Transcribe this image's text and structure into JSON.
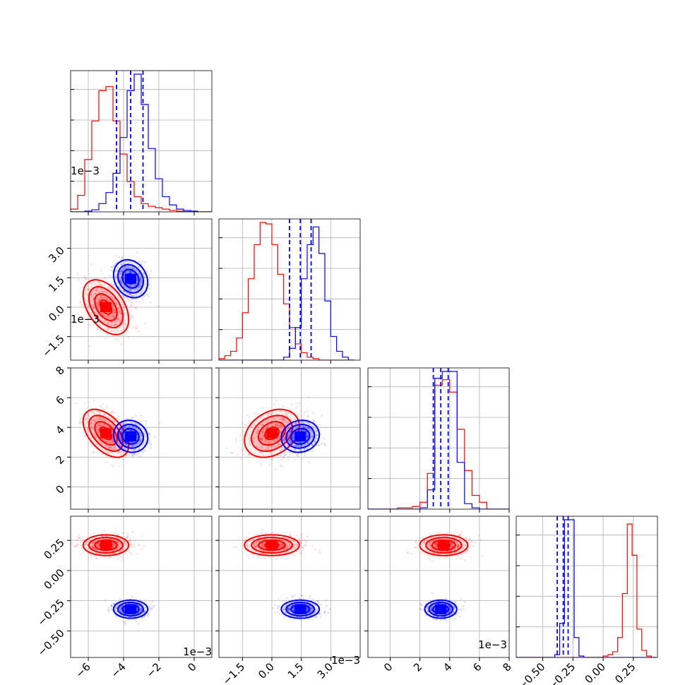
{
  "chart_data": {
    "type": "corner",
    "series": [
      {
        "name": "",
        "color": "#ff0000",
        "mean": [
          -5.0,
          0.0,
          3.6,
          0.21
        ],
        "sd": [
          0.6,
          0.65,
          0.75,
          0.04
        ],
        "rho": {
          "0-1": -0.45,
          "0-2": -0.5,
          "1-2": 0.3
        }
      },
      {
        "name": "",
        "color": "#0000ff",
        "mean": [
          -3.6,
          1.45,
          3.4,
          -0.32
        ],
        "sd": [
          0.45,
          0.45,
          0.5,
          0.035
        ],
        "rho": {
          "0-1": -0.2,
          "0-2": -0.1,
          "1-2": 0.1
        }
      }
    ],
    "quantile_lines": [
      {
        "color": "#0000ff",
        "values": [
          -4.4,
          -3.6,
          -2.9
        ]
      },
      {
        "color": "#0000ff",
        "values": [
          0.9,
          1.45,
          2.0
        ]
      },
      {
        "color": "#0000ff",
        "values": [
          2.9,
          3.4,
          3.9
        ]
      },
      {
        "color": "#0000ff",
        "values": [
          -0.38,
          -0.33,
          -0.29
        ]
      }
    ],
    "histograms": [
      {
        "edges": [
          -7,
          -6.6,
          -6.2,
          -5.8,
          -5.4,
          -5.0,
          -4.6,
          -4.2,
          -3.8,
          -3.4,
          -3.0,
          -2.6,
          -2.2,
          -1.8,
          -1.4,
          -1.0,
          -0.6,
          -0.2,
          0.2,
          0.6,
          1.0
        ],
        "red": [
          0.02,
          0.12,
          0.38,
          0.66,
          0.88,
          0.91,
          0.66,
          0.42,
          0.22,
          0.11,
          0.06,
          0.04,
          0.03,
          0.02,
          0.01,
          0.005,
          0.002,
          0.0,
          0.0,
          0.0
        ],
        "blue": [
          0.0,
          0.0,
          0.005,
          0.015,
          0.06,
          0.14,
          0.28,
          0.54,
          0.88,
          1.0,
          0.78,
          0.46,
          0.24,
          0.11,
          0.05,
          0.02,
          0.01,
          0.005,
          0.0,
          0.0
        ]
      },
      {
        "edges": [
          -3.0,
          -2.7,
          -2.4,
          -2.1,
          -1.8,
          -1.5,
          -1.2,
          -0.9,
          -0.6,
          -0.3,
          0.0,
          0.3,
          0.6,
          0.9,
          1.2,
          1.5,
          1.8,
          2.1,
          2.4,
          2.7,
          3.0,
          3.3,
          3.6,
          3.9,
          4.2
        ],
        "red": [
          0.0,
          0.01,
          0.03,
          0.06,
          0.15,
          0.32,
          0.55,
          0.78,
          0.93,
          0.92,
          0.78,
          0.58,
          0.38,
          0.22,
          0.11,
          0.05,
          0.02,
          0.01,
          0.0,
          0.0,
          0.0,
          0.0,
          0.0,
          0.0
        ],
        "blue": [
          0.0,
          0.0,
          0.0,
          0.0,
          0.0,
          0.0,
          0.0,
          0.0,
          0.0,
          0.0,
          0.0,
          0.0,
          0.02,
          0.08,
          0.22,
          0.55,
          0.78,
          0.9,
          0.72,
          0.4,
          0.16,
          0.06,
          0.02,
          0.0
        ]
      },
      {
        "edges": [
          -1.5,
          -1.0,
          -0.5,
          0.0,
          0.5,
          1.0,
          1.5,
          2.0,
          2.5,
          3.0,
          3.5,
          4.0,
          4.5,
          5.0,
          5.5,
          6.0,
          6.5,
          7.0,
          7.5,
          8.0
        ],
        "red": [
          0.0,
          0.0,
          0.0,
          0.0,
          0.01,
          0.01,
          0.02,
          0.05,
          0.26,
          0.9,
          0.94,
          0.85,
          0.58,
          0.28,
          0.1,
          0.05,
          0.0,
          0.0,
          0.0
        ],
        "blue": [
          0.0,
          0.0,
          0.0,
          0.0,
          0.0,
          0.0,
          0.0,
          0.01,
          0.14,
          0.95,
          1.0,
          1.0,
          0.34,
          0.04,
          0.01,
          0.0,
          0.0,
          0.0,
          0.0
        ]
      },
      {
        "edges": [
          -0.72,
          -0.68,
          -0.64,
          -0.6,
          -0.56,
          -0.52,
          -0.48,
          -0.44,
          -0.4,
          -0.36,
          -0.32,
          -0.28,
          -0.24,
          -0.2,
          -0.16,
          -0.12,
          -0.08,
          -0.04,
          0.0,
          0.04,
          0.08,
          0.12,
          0.16,
          0.2,
          0.24,
          0.28,
          0.32,
          0.36,
          0.4,
          0.44
        ],
        "red": [
          0,
          0,
          0,
          0,
          0,
          0,
          0,
          0,
          0,
          0,
          0,
          0,
          0,
          0,
          0,
          0,
          0,
          0,
          0.01,
          0.02,
          0.04,
          0.14,
          0.45,
          0.94,
          0.72,
          0.2,
          0.05,
          0.01,
          0.0
        ],
        "blue": [
          0,
          0,
          0,
          0,
          0,
          0,
          0,
          0,
          0.02,
          0.24,
          0.97,
          0.97,
          0.14,
          0.01,
          0.0,
          0,
          0,
          0,
          0,
          0,
          0,
          0,
          0,
          0,
          0,
          0,
          0,
          0,
          0
        ]
      }
    ],
    "axis_ranges": [
      [
        -7,
        1
      ],
      [
        -2.7,
        4.5
      ],
      [
        -1.5,
        8
      ],
      [
        -0.72,
        0.45
      ]
    ],
    "tick_labels": [
      {
        "values": [
          -6,
          -4,
          -2,
          0
        ],
        "labels": [
          "−6",
          "−4",
          "−2",
          "0"
        ]
      },
      {
        "values": [
          -1.5,
          0.0,
          1.5,
          3.0
        ],
        "labels": [
          "−1.5",
          "0.0",
          "1.5",
          "3.0"
        ]
      },
      {
        "values": [
          0,
          2,
          4,
          6,
          8
        ],
        "labels": [
          "0",
          "2",
          "4",
          "6",
          "8"
        ]
      },
      {
        "values": [
          -0.5,
          -0.25,
          0.0,
          0.25
        ],
        "labels": [
          "−0.50",
          "−0.25",
          "0.00",
          "0.25"
        ]
      }
    ],
    "offset_labels": [
      "1e−3",
      "1e−3",
      "1e−3",
      ""
    ],
    "grid": true
  }
}
